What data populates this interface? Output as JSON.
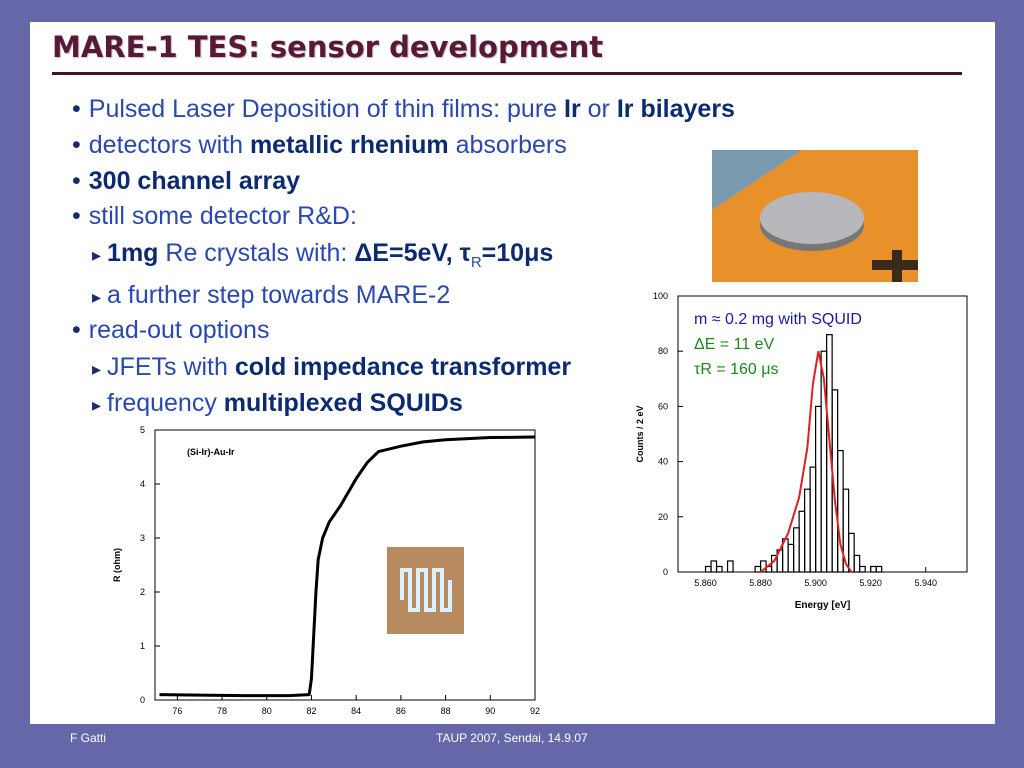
{
  "slide": {
    "title": "MARE-1 TES: sensor development",
    "bullets": [
      {
        "level": 1,
        "parts": [
          {
            "text": "Pulsed Laser Deposition of thin films: pure "
          },
          {
            "text": "Ir",
            "bold": true
          },
          {
            "text": " or "
          },
          {
            "text": "Ir bilayers",
            "bold": true
          }
        ]
      },
      {
        "level": 1,
        "parts": [
          {
            "text": "detectors with "
          },
          {
            "text": "metallic rhenium",
            "bold": true
          },
          {
            "text": " absorbers"
          }
        ]
      },
      {
        "level": 1,
        "parts": [
          {
            "text": "300 channel array",
            "bold": true
          }
        ]
      },
      {
        "level": 1,
        "parts": [
          {
            "text": "still some detector R&D:"
          }
        ]
      },
      {
        "level": 2,
        "parts": [
          {
            "text": "1mg",
            "bold": true
          },
          {
            "text": " Re crystals with: "
          },
          {
            "text": "ΔE=5eV,  τ",
            "bold": true
          },
          {
            "text": "R",
            "bold": true,
            "sub": true
          },
          {
            "text": "=10μs",
            "bold": true
          }
        ]
      },
      {
        "level": 2,
        "parts": [
          {
            "text": "a further step towards MARE-2"
          }
        ]
      },
      {
        "level": 1,
        "parts": [
          {
            "text": "read-out options"
          }
        ]
      },
      {
        "level": 2,
        "parts": [
          {
            "text": "JFETs with "
          },
          {
            "text": "cold impedance transformer",
            "bold": true
          }
        ]
      },
      {
        "level": 2,
        "parts": [
          {
            "text": "frequency "
          },
          {
            "text": "multiplexed SQUIDs",
            "bold": true
          }
        ]
      }
    ]
  },
  "chart_data": [
    {
      "type": "line",
      "ylabel": "R (ohm)",
      "annotations": [
        {
          "text": "(Si-Ir)-Au-Ir",
          "color": "#000000"
        }
      ],
      "xlim": [
        75,
        92
      ],
      "xticks": [
        76,
        78,
        80,
        82,
        84,
        86,
        88,
        90,
        92
      ],
      "ylim": [
        0,
        5
      ],
      "yticks": [
        0,
        1,
        2,
        3,
        4,
        5
      ],
      "series": [
        {
          "color": "#000000",
          "x": [
            75.2,
            77,
            79,
            81,
            81.9,
            82.0,
            82.1,
            82.2,
            82.3,
            82.5,
            82.8,
            83.3,
            84,
            84.5,
            85,
            86,
            87,
            88,
            90,
            92
          ],
          "values": [
            0.1,
            0.09,
            0.08,
            0.08,
            0.1,
            0.4,
            1.2,
            2.0,
            2.6,
            3.0,
            3.3,
            3.6,
            4.1,
            4.4,
            4.6,
            4.7,
            4.78,
            4.82,
            4.86,
            4.87
          ]
        }
      ]
    },
    {
      "type": "histogram",
      "xlabel": "Energy [eV]",
      "ylabel": "Counts / 2 eV",
      "annotations": [
        {
          "text": "m ≈ 0.2 mg with SQUID",
          "color": "#1a1aa0"
        },
        {
          "text": "ΔE = 11 eV",
          "color": "#1a8a1a"
        },
        {
          "text": "τR = 160 μs",
          "color": "#1a8a1a"
        }
      ],
      "xlim": [
        5.85,
        5.955
      ],
      "xticks": [
        {
          "value": 5.86,
          "label": "5.860"
        },
        {
          "value": 5.88,
          "label": "5.880"
        },
        {
          "value": 5.9,
          "label": "5.900"
        },
        {
          "value": 5.92,
          "label": "5.920"
        },
        {
          "value": 5.94,
          "label": "5.940"
        }
      ],
      "ylim": [
        0,
        100
      ],
      "yticks": [
        0,
        20,
        40,
        60,
        80,
        100
      ],
      "color": "#000000",
      "bins": [
        5.86,
        5.862,
        5.864,
        5.866,
        5.868,
        5.87,
        5.872,
        5.874,
        5.876,
        5.878,
        5.88,
        5.882,
        5.884,
        5.886,
        5.888,
        5.89,
        5.892,
        5.894,
        5.896,
        5.898,
        5.9,
        5.902,
        5.904,
        5.906,
        5.908,
        5.91,
        5.912,
        5.914,
        5.916,
        5.918,
        5.92,
        5.922,
        5.924
      ],
      "values": [
        2,
        4,
        2,
        0,
        4,
        0,
        0,
        0,
        0,
        2,
        4,
        2,
        6,
        8,
        12,
        10,
        16,
        22,
        30,
        38,
        60,
        80,
        86,
        66,
        44,
        30,
        14,
        6,
        2,
        0,
        2,
        2
      ],
      "fit": {
        "color": "#e02020",
        "x": [
          5.88,
          5.885,
          5.89,
          5.894,
          5.897,
          5.899,
          5.901,
          5.903,
          5.905,
          5.907,
          5.909,
          5.911,
          5.913
        ],
        "values": [
          0,
          4,
          14,
          27,
          45,
          68,
          80,
          70,
          48,
          26,
          10,
          3,
          0
        ]
      }
    }
  ],
  "footer": {
    "author": "F Gatti",
    "event": "TAUP 2007, Sendai, 14.9.07"
  }
}
